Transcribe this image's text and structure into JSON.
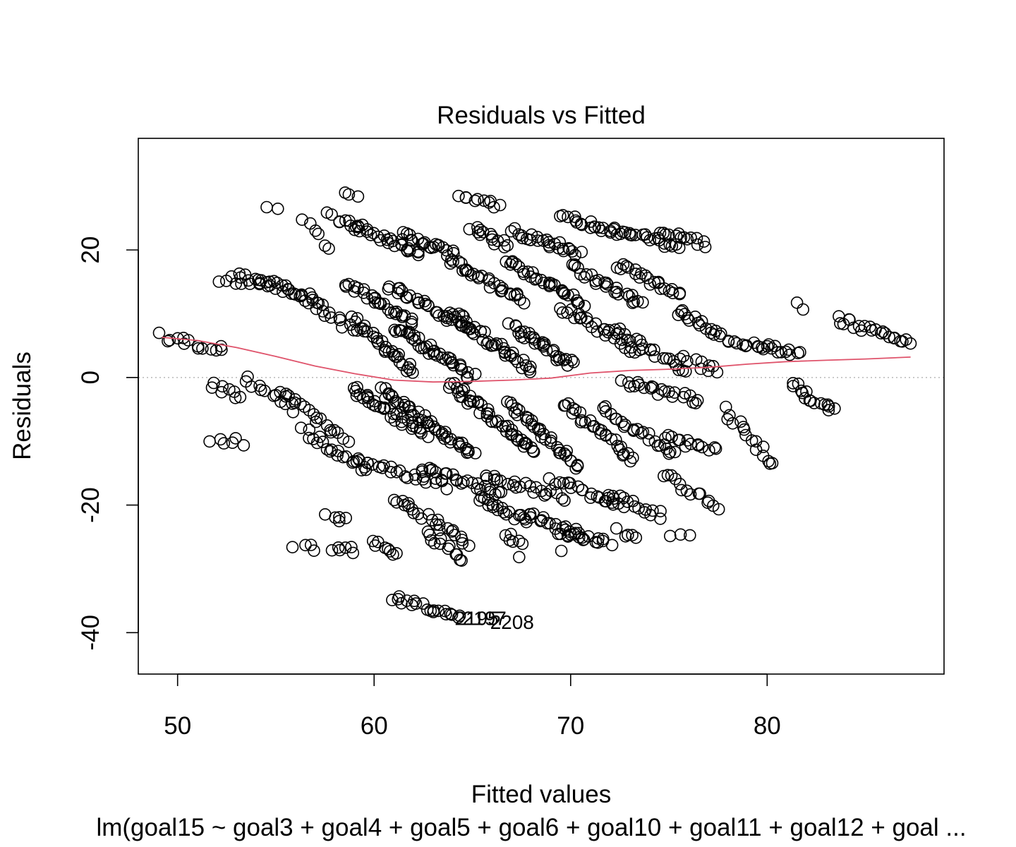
{
  "chart_data": {
    "type": "scatter",
    "title": "Residuals vs Fitted",
    "xlabel": "Fitted values",
    "ylabel": "Residuals",
    "subtitle": "lm(goal15 ~ goal3 + goal4 + goal5 + goal6 + goal10 + goal11 + goal12 + goal ...",
    "xlim": [
      48.0,
      89.0
    ],
    "ylim": [
      -46.5,
      37.5
    ],
    "xticks": [
      50,
      60,
      70,
      80
    ],
    "yticks": [
      -40,
      -20,
      0,
      20
    ],
    "reference_line": {
      "y": 0,
      "style": "dotted",
      "color": "#bebebe"
    },
    "smooth_color": "#df536b",
    "point_color": "#000000",
    "grid": false,
    "legend": "none",
    "smooth": {
      "x": [
        49.2,
        51,
        53,
        55,
        57,
        59,
        61,
        63,
        65,
        67,
        69,
        71,
        73,
        75,
        77,
        79,
        81,
        83,
        85,
        87.3
      ],
      "y": [
        6.3,
        5.8,
        4.7,
        3.3,
        1.8,
        0.6,
        -0.4,
        -0.7,
        -0.6,
        -0.4,
        -0.1,
        0.7,
        1.1,
        1.3,
        1.6,
        2.1,
        2.5,
        2.7,
        2.9,
        3.2
      ]
    },
    "outlier_labels": [
      {
        "label": "2195",
        "x": 64.1,
        "y": -38.8
      },
      {
        "label": "2197",
        "x": 64.5,
        "y": -38.8
      },
      {
        "label": "2208",
        "x": 65.9,
        "y": -39.4
      }
    ],
    "point_groups": [
      {
        "x0": 49.2,
        "x1": 52.3,
        "y0": 6.6,
        "y1": 4.2,
        "n": 14
      },
      {
        "x0": 52.1,
        "x1": 55.2,
        "y0": 15.4,
        "y1": 14.8,
        "n": 14
      },
      {
        "x0": 53.3,
        "x1": 57.1,
        "y0": 16.2,
        "y1": 12.0,
        "n": 16
      },
      {
        "x0": 54.6,
        "x1": 55.0,
        "y0": 26.8,
        "y1": 26.4,
        "n": 2
      },
      {
        "x0": 55.4,
        "x1": 59.0,
        "y0": 14.6,
        "y1": 7.4,
        "n": 22
      },
      {
        "x0": 56.4,
        "x1": 57.6,
        "y0": 25.0,
        "y1": 20.0,
        "n": 6
      },
      {
        "x0": 57.6,
        "x1": 59.4,
        "y0": 25.6,
        "y1": 23.4,
        "n": 8
      },
      {
        "x0": 58.6,
        "x1": 59.1,
        "y0": 29.4,
        "y1": 28.6,
        "n": 3
      },
      {
        "x0": 58.8,
        "x1": 62.4,
        "y0": 24.0,
        "y1": 19.2,
        "n": 26
      },
      {
        "x0": 61.4,
        "x1": 64.0,
        "y0": 22.4,
        "y1": 19.6,
        "n": 20
      },
      {
        "x0": 64.4,
        "x1": 66.4,
        "y0": 29.0,
        "y1": 26.8,
        "n": 10
      },
      {
        "x0": 65.0,
        "x1": 66.8,
        "y0": 23.8,
        "y1": 20.4,
        "n": 14
      },
      {
        "x0": 67.0,
        "x1": 70.4,
        "y0": 22.8,
        "y1": 19.6,
        "n": 26
      },
      {
        "x0": 69.6,
        "x1": 72.6,
        "y0": 25.2,
        "y1": 22.4,
        "n": 20
      },
      {
        "x0": 72.4,
        "x1": 75.4,
        "y0": 23.4,
        "y1": 20.4,
        "n": 20
      },
      {
        "x0": 74.6,
        "x1": 77.0,
        "y0": 23.0,
        "y1": 21.0,
        "n": 14
      },
      {
        "x0": 58.6,
        "x1": 62.0,
        "y0": 14.6,
        "y1": 8.6,
        "n": 28
      },
      {
        "x0": 60.8,
        "x1": 64.8,
        "y0": 14.2,
        "y1": 7.6,
        "n": 30
      },
      {
        "x0": 63.6,
        "x1": 67.6,
        "y0": 18.6,
        "y1": 12.0,
        "n": 30
      },
      {
        "x0": 66.8,
        "x1": 70.6,
        "y0": 18.4,
        "y1": 11.8,
        "n": 30
      },
      {
        "x0": 70.0,
        "x1": 73.6,
        "y0": 17.6,
        "y1": 11.4,
        "n": 26
      },
      {
        "x0": 72.4,
        "x1": 75.6,
        "y0": 17.8,
        "y1": 12.8,
        "n": 22
      },
      {
        "x0": 75.4,
        "x1": 78.2,
        "y0": 10.4,
        "y1": 5.8,
        "n": 20
      },
      {
        "x0": 78.6,
        "x1": 81.6,
        "y0": 5.4,
        "y1": 3.8,
        "n": 20
      },
      {
        "x0": 81.4,
        "x1": 81.8,
        "y0": 11.4,
        "y1": 11.0,
        "n": 2
      },
      {
        "x0": 83.6,
        "x1": 87.3,
        "y0": 9.2,
        "y1": 5.4,
        "n": 22
      },
      {
        "x0": 59.0,
        "x1": 62.0,
        "y0": 9.0,
        "y1": 1.0,
        "n": 30
      },
      {
        "x0": 61.0,
        "x1": 65.0,
        "y0": 8.0,
        "y1": 0.0,
        "n": 38
      },
      {
        "x0": 64.0,
        "x1": 68.0,
        "y0": 10.0,
        "y1": 1.0,
        "n": 38
      },
      {
        "x0": 67.0,
        "x1": 70.0,
        "y0": 8.0,
        "y1": 2.0,
        "n": 30
      },
      {
        "x0": 69.5,
        "x1": 73.5,
        "y0": 11.0,
        "y1": 4.0,
        "n": 26
      },
      {
        "x0": 72.0,
        "x1": 76.0,
        "y0": 8.0,
        "y1": 0.8,
        "n": 24
      },
      {
        "x0": 75.6,
        "x1": 77.6,
        "y0": 3.0,
        "y1": 1.0,
        "n": 10
      },
      {
        "x0": 51.8,
        "x1": 53.2,
        "y0": -1.0,
        "y1": -3.0,
        "n": 8
      },
      {
        "x0": 53.4,
        "x1": 56.0,
        "y0": 0.0,
        "y1": -5.0,
        "n": 12
      },
      {
        "x0": 55.2,
        "x1": 58.6,
        "y0": -2.0,
        "y1": -9.8,
        "n": 20
      },
      {
        "x0": 51.8,
        "x1": 53.2,
        "y0": -9.6,
        "y1": -10.2,
        "n": 6
      },
      {
        "x0": 56.4,
        "x1": 59.6,
        "y0": -8.4,
        "y1": -14.6,
        "n": 20
      },
      {
        "x0": 58.8,
        "x1": 62.6,
        "y0": -1.6,
        "y1": -9.0,
        "n": 34
      },
      {
        "x0": 60.4,
        "x1": 65.0,
        "y0": -2.0,
        "y1": -12.0,
        "n": 44
      },
      {
        "x0": 63.8,
        "x1": 68.2,
        "y0": -0.8,
        "y1": -11.6,
        "n": 44
      },
      {
        "x0": 66.8,
        "x1": 70.4,
        "y0": -4.0,
        "y1": -14.0,
        "n": 34
      },
      {
        "x0": 69.6,
        "x1": 73.2,
        "y0": -4.0,
        "y1": -13.0,
        "n": 28
      },
      {
        "x0": 71.6,
        "x1": 75.4,
        "y0": -5.0,
        "y1": -12.0,
        "n": 24
      },
      {
        "x0": 72.6,
        "x1": 76.6,
        "y0": -0.6,
        "y1": -3.8,
        "n": 22
      },
      {
        "x0": 74.8,
        "x1": 77.4,
        "y0": -9.4,
        "y1": -11.2,
        "n": 14
      },
      {
        "x0": 77.8,
        "x1": 80.4,
        "y0": -5.0,
        "y1": -13.8,
        "n": 16
      },
      {
        "x0": 81.2,
        "x1": 83.4,
        "y0": -1.0,
        "y1": -5.4,
        "n": 16
      },
      {
        "x0": 59.2,
        "x1": 63.8,
        "y0": -13.0,
        "y1": -17.0,
        "n": 24
      },
      {
        "x0": 62.4,
        "x1": 66.6,
        "y0": -14.2,
        "y1": -18.4,
        "n": 24
      },
      {
        "x0": 65.6,
        "x1": 69.6,
        "y0": -15.2,
        "y1": -18.8,
        "n": 22
      },
      {
        "x0": 69.0,
        "x1": 72.6,
        "y0": -16.0,
        "y1": -20.4,
        "n": 20
      },
      {
        "x0": 71.8,
        "x1": 74.6,
        "y0": -18.2,
        "y1": -21.6,
        "n": 16
      },
      {
        "x0": 74.6,
        "x1": 77.6,
        "y0": -15.0,
        "y1": -20.4,
        "n": 14
      },
      {
        "x0": 57.6,
        "x1": 58.6,
        "y0": -21.6,
        "y1": -22.2,
        "n": 5
      },
      {
        "x0": 61.0,
        "x1": 64.8,
        "y0": -19.0,
        "y1": -25.8,
        "n": 24
      },
      {
        "x0": 65.2,
        "x1": 67.8,
        "y0": -19.0,
        "y1": -22.6,
        "n": 18
      },
      {
        "x0": 67.6,
        "x1": 70.6,
        "y0": -21.0,
        "y1": -25.0,
        "n": 20
      },
      {
        "x0": 69.4,
        "x1": 72.0,
        "y0": -24.4,
        "y1": -26.0,
        "n": 16
      },
      {
        "x0": 72.4,
        "x1": 73.4,
        "y0": -24.2,
        "y1": -25.0,
        "n": 5
      },
      {
        "x0": 75.2,
        "x1": 75.9,
        "y0": -24.6,
        "y1": -25.0,
        "n": 3
      },
      {
        "x0": 56.0,
        "x1": 57.0,
        "y0": -26.2,
        "y1": -26.8,
        "n": 4
      },
      {
        "x0": 57.8,
        "x1": 59.1,
        "y0": -26.8,
        "y1": -27.2,
        "n": 6
      },
      {
        "x0": 59.8,
        "x1": 61.2,
        "y0": -25.6,
        "y1": -27.6,
        "n": 8
      },
      {
        "x0": 62.6,
        "x1": 64.6,
        "y0": -24.4,
        "y1": -28.4,
        "n": 12
      },
      {
        "x0": 66.6,
        "x1": 67.6,
        "y0": -24.6,
        "y1": -26.6,
        "n": 6
      },
      {
        "x0": 67.4,
        "x1": 67.4,
        "y0": -28.0,
        "y1": -28.0,
        "n": 1
      },
      {
        "x0": 69.5,
        "x1": 69.5,
        "y0": -27.6,
        "y1": -27.6,
        "n": 1
      },
      {
        "x0": 61.0,
        "x1": 64.4,
        "y0": -34.6,
        "y1": -37.4,
        "n": 20
      }
    ]
  }
}
